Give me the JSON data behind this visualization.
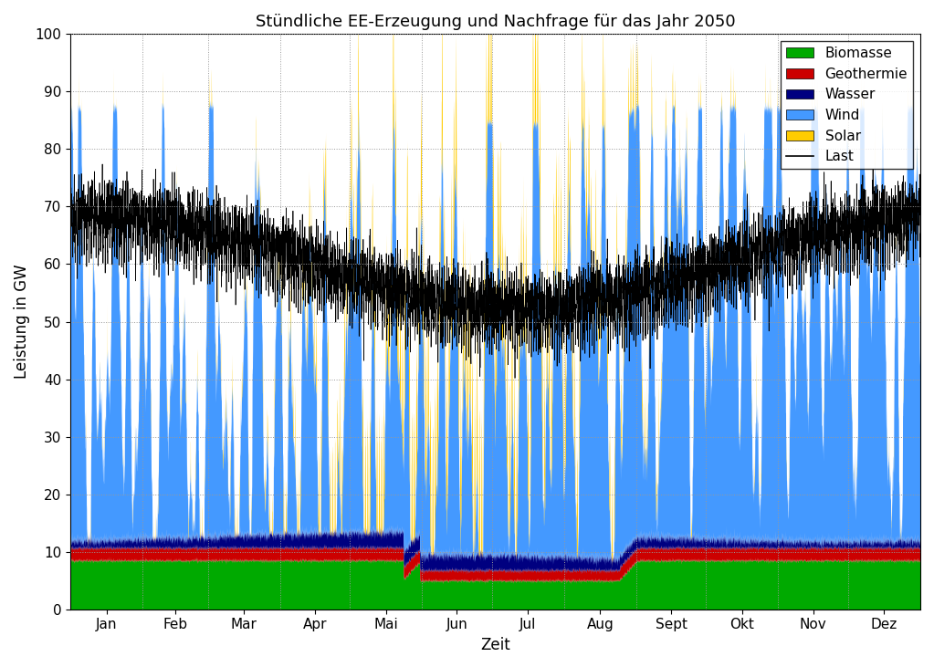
{
  "title": "Stündliche EE-Erzeugung und Nachfrage für das Jahr 2050",
  "xlabel": "Zeit",
  "ylabel": "Leistung in GW",
  "ylim": [
    0,
    100
  ],
  "months": [
    "Jan",
    "Feb",
    "Mar",
    "Apr",
    "Mai",
    "Jun",
    "Jul",
    "Aug",
    "Sept",
    "Okt",
    "Nov",
    "Dez"
  ],
  "colors": {
    "Biomasse": "#00aa00",
    "Geothermie": "#cc0000",
    "Wasser": "#000080",
    "Wind": "#4499ff",
    "Solar": "#ffcc00",
    "Last": "#000000"
  },
  "hours_per_year": 8760,
  "background_color": "#ffffff",
  "grid_color": "#999999",
  "title_fontsize": 13,
  "label_fontsize": 12,
  "tick_fontsize": 11
}
